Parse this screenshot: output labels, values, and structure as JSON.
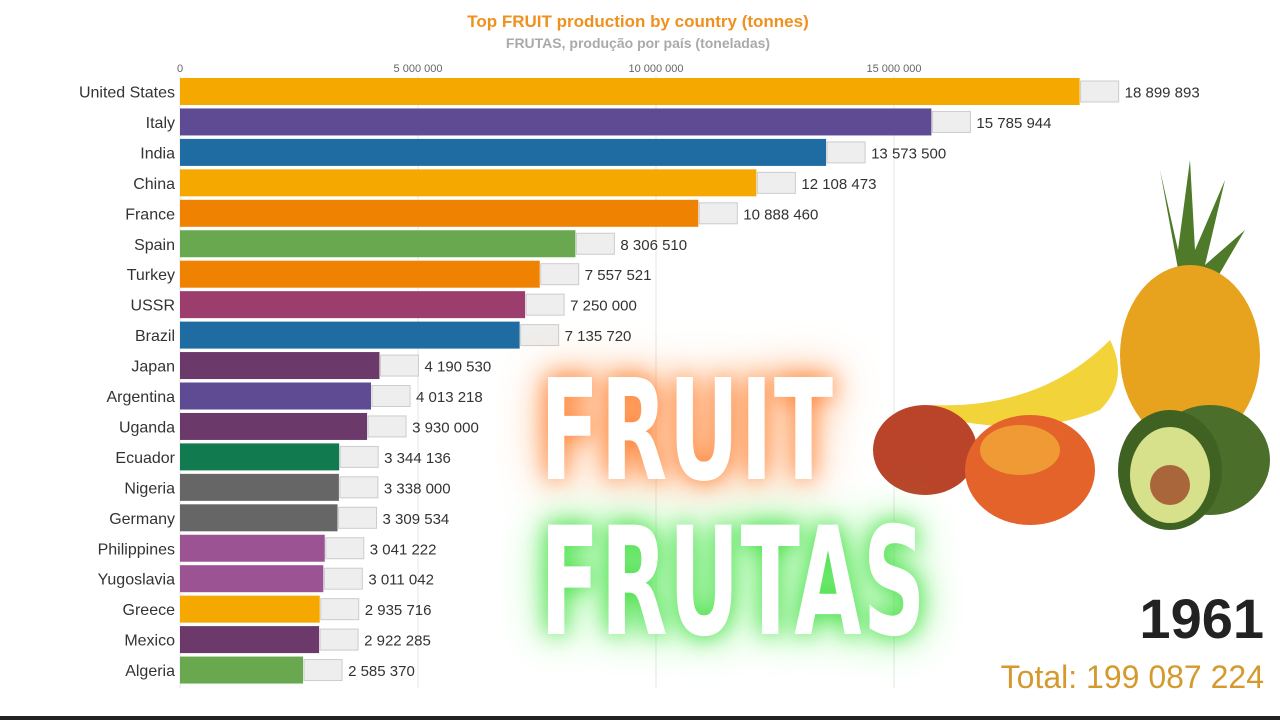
{
  "chart_data": {
    "type": "bar",
    "orientation": "horizontal",
    "title": "Top FRUIT production by country (tonnes)",
    "subtitle": "FRUTAS, produção por país (toneladas)",
    "xlim": [
      0,
      19000000
    ],
    "xticks": [
      0,
      5000000,
      10000000,
      15000000
    ],
    "xtick_labels": [
      "0",
      "5 000 000",
      "10 000 000",
      "15 000 000"
    ],
    "grid": true,
    "categories": [
      "United States",
      "Italy",
      "India",
      "China",
      "France",
      "Spain",
      "Turkey",
      "USSR",
      "Brazil",
      "Japan",
      "Argentina",
      "Uganda",
      "Ecuador",
      "Nigeria",
      "Germany",
      "Philippines",
      "Yugoslavia",
      "Greece",
      "Mexico",
      "Algeria"
    ],
    "values": [
      18899893,
      15785944,
      13573500,
      12108473,
      10888460,
      8306510,
      7557521,
      7250000,
      7135720,
      4190530,
      4013218,
      3930000,
      3344136,
      3338000,
      3309534,
      3041222,
      3011042,
      2935716,
      2922285,
      2585370
    ],
    "value_labels": [
      "18 899 893",
      "15 785 944",
      "13 573 500",
      "12 108 473",
      "10 888 460",
      "8 306 510",
      "7 557 521",
      "7 250 000",
      "7 135 720",
      "4 190 530",
      "4 013 218",
      "3 930 000",
      "3 344 136",
      "3 338 000",
      "3 309 534",
      "3 041 222",
      "3 011 042",
      "2 935 716",
      "2 922 285",
      "2 585 370"
    ],
    "colors": [
      "#f5a800",
      "#5e4b94",
      "#1f6ca3",
      "#f5a800",
      "#ef8200",
      "#6aa84f",
      "#ef8200",
      "#9c3d6e",
      "#1f6ca3",
      "#6b3a6b",
      "#5e4b94",
      "#6b3a6b",
      "#127a4f",
      "#666666",
      "#666666",
      "#9b5394",
      "#9b5394",
      "#f5a800",
      "#6b3a6b",
      "#6aa84f"
    ]
  },
  "year": "1961",
  "total": "Total: 199 087 224",
  "overlay": {
    "word1": "FRUIT",
    "word2": "FRUTAS"
  }
}
